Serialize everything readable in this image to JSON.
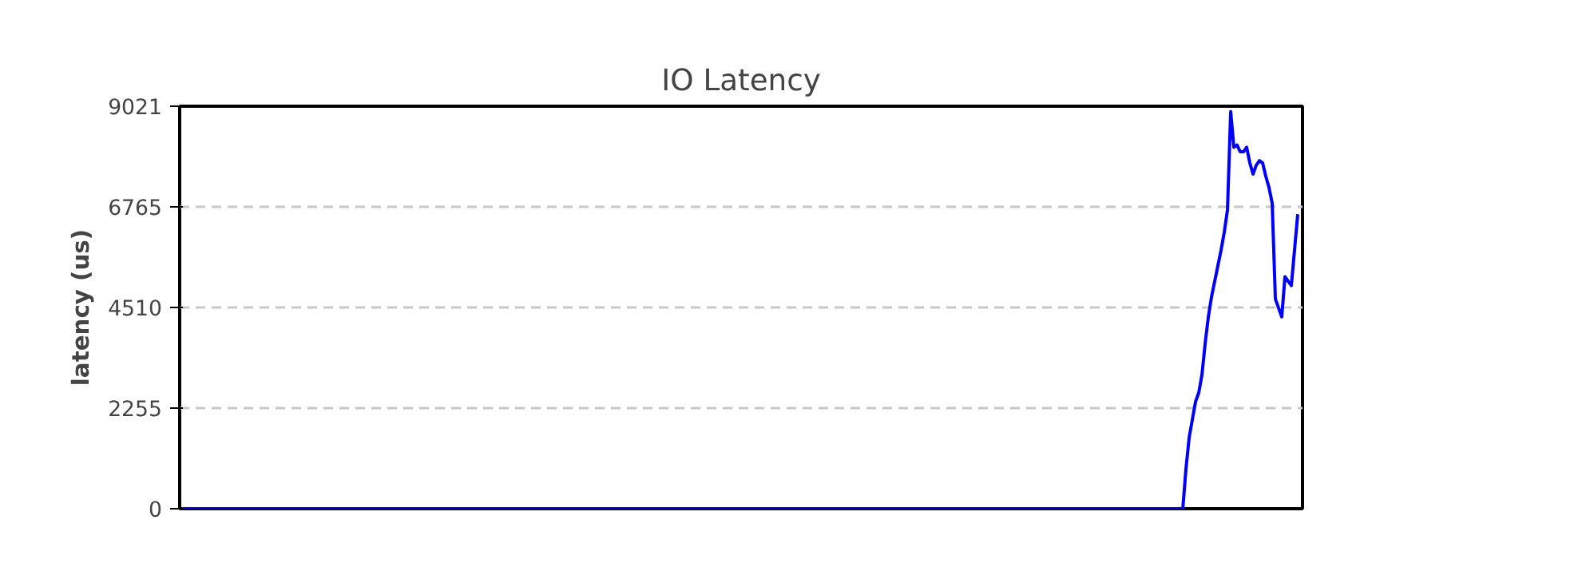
{
  "chart_data": {
    "type": "line",
    "title": "IO Latency",
    "ylabel": "latency (us)",
    "categories": [
      null,
      null,
      null,
      null,
      null,
      null,
      null,
      null,
      null,
      null,
      null,
      null,
      null,
      null,
      null,
      null,
      null,
      null,
      null,
      null,
      null,
      null,
      null,
      null,
      null,
      null,
      null,
      null,
      null,
      null,
      null,
      null,
      null,
      null,
      null,
      null,
      null,
      null,
      null,
      null,
      null,
      null,
      null,
      null,
      null,
      null,
      null,
      null,
      null,
      null,
      null,
      null,
      null,
      null,
      null,
      null,
      null,
      null,
      null,
      null,
      null,
      null,
      null,
      null,
      null,
      null,
      null,
      null,
      null,
      null,
      null,
      null,
      null,
      null,
      null,
      null,
      null,
      null,
      null,
      null,
      null,
      null,
      null,
      null,
      null,
      null,
      null,
      null,
      null,
      null,
      null,
      null,
      null,
      null,
      null,
      null,
      null,
      null,
      null,
      null,
      null,
      null,
      null,
      null,
      null,
      null,
      null,
      null,
      null,
      null,
      null,
      null,
      null,
      null,
      null,
      null,
      null,
      null,
      null,
      null,
      null,
      null,
      null,
      null,
      null,
      null,
      null,
      null,
      null,
      null,
      null,
      null,
      null,
      null,
      null,
      null,
      null,
      null,
      null,
      null,
      null,
      null,
      null,
      null,
      null,
      null,
      null,
      null,
      null,
      null,
      null,
      null,
      null,
      null,
      null,
      null,
      null,
      null,
      null,
      null,
      null,
      null,
      null,
      null,
      null,
      null,
      null,
      null,
      null,
      null,
      null,
      null,
      null,
      null,
      null,
      null,
      null,
      null,
      null,
      null,
      null,
      null,
      null,
      null,
      null,
      null,
      null,
      null,
      null,
      null,
      null,
      null,
      null,
      null,
      null,
      null,
      null,
      null,
      null,
      null,
      null,
      null,
      null,
      null,
      null,
      null,
      null,
      null,
      null,
      null,
      null,
      null,
      null,
      null,
      null,
      null,
      null,
      null,
      null,
      null,
      null,
      null,
      null,
      null,
      null,
      null,
      null,
      null,
      null,
      null,
      null,
      null,
      null,
      null,
      null,
      null,
      null,
      null,
      null,
      null,
      null,
      null,
      null,
      null,
      null,
      null,
      null,
      null,
      null,
      null,
      null,
      null,
      null,
      null,
      null,
      null,
      null,
      null,
      null,
      null,
      null,
      null,
      null,
      null,
      null,
      null,
      null,
      null,
      null,
      null,
      null,
      null,
      null,
      null,
      null,
      null,
      null,
      null,
      null,
      null,
      null,
      null,
      null,
      null,
      null,
      null,
      null,
      null,
      null,
      null,
      null,
      null,
      null,
      null,
      null,
      null,
      null,
      null,
      null,
      null,
      null,
      null,
      null,
      null,
      null,
      null,
      null,
      null,
      null,
      null,
      null,
      null,
      null,
      null,
      null,
      null,
      null,
      null,
      null,
      null,
      null,
      null,
      null,
      null,
      null,
      null,
      null,
      null,
      null,
      null,
      null,
      null,
      null,
      null,
      null,
      null,
      null,
      null,
      null,
      null,
      null,
      null,
      null,
      null,
      null,
      null,
      null,
      null,
      null,
      null,
      null
    ],
    "series": [
      {
        "color": "#0000ff",
        "values": [
          0,
          0,
          0,
          0,
          0,
          0,
          0,
          0,
          0,
          0,
          0,
          0,
          0,
          0,
          0,
          0,
          0,
          0,
          0,
          0,
          0,
          0,
          0,
          0,
          0,
          0,
          0,
          0,
          0,
          0,
          0,
          0,
          0,
          0,
          0,
          0,
          0,
          0,
          0,
          0,
          0,
          0,
          0,
          0,
          0,
          0,
          0,
          0,
          0,
          0,
          0,
          0,
          0,
          0,
          0,
          0,
          0,
          0,
          0,
          0,
          0,
          0,
          0,
          0,
          0,
          0,
          0,
          0,
          0,
          0,
          0,
          0,
          0,
          0,
          0,
          0,
          0,
          0,
          0,
          0,
          0,
          0,
          0,
          0,
          0,
          0,
          0,
          0,
          0,
          0,
          0,
          0,
          0,
          0,
          0,
          0,
          0,
          0,
          0,
          0,
          0,
          0,
          0,
          0,
          0,
          0,
          0,
          0,
          0,
          0,
          0,
          0,
          0,
          0,
          0,
          0,
          0,
          0,
          0,
          0,
          0,
          0,
          0,
          0,
          0,
          0,
          0,
          0,
          0,
          0,
          0,
          0,
          0,
          0,
          0,
          0,
          0,
          0,
          0,
          0,
          0,
          0,
          0,
          0,
          0,
          0,
          0,
          0,
          0,
          0,
          0,
          0,
          0,
          0,
          0,
          0,
          0,
          0,
          0,
          0,
          0,
          0,
          0,
          0,
          0,
          0,
          0,
          0,
          0,
          0,
          0,
          0,
          0,
          0,
          0,
          0,
          0,
          0,
          0,
          0,
          0,
          0,
          0,
          0,
          0,
          0,
          0,
          0,
          0,
          0,
          0,
          0,
          0,
          0,
          0,
          0,
          0,
          0,
          0,
          0,
          0,
          0,
          0,
          0,
          0,
          0,
          0,
          0,
          0,
          0,
          0,
          0,
          0,
          0,
          0,
          0,
          0,
          0,
          0,
          0,
          0,
          0,
          0,
          0,
          0,
          0,
          0,
          0,
          0,
          0,
          0,
          0,
          0,
          0,
          0,
          0,
          0,
          0,
          0,
          0,
          0,
          0,
          0,
          0,
          0,
          0,
          0,
          0,
          0,
          0,
          0,
          0,
          0,
          0,
          0,
          0,
          0,
          0,
          0,
          0,
          0,
          0,
          0,
          0,
          0,
          0,
          0,
          0,
          0,
          0,
          0,
          0,
          0,
          0,
          0,
          0,
          0,
          0,
          0,
          0,
          0,
          0,
          0,
          0,
          0,
          0,
          0,
          0,
          0,
          0,
          0,
          0,
          0,
          0,
          0,
          0,
          0,
          0,
          0,
          0,
          0,
          0,
          0,
          0,
          0,
          0,
          0,
          0,
          0,
          0,
          0,
          0,
          0,
          0,
          0,
          900,
          1600,
          2000,
          2400,
          2600,
          3000,
          3700,
          4300,
          4750,
          5100,
          5450,
          5800,
          6200,
          6700,
          8900,
          8100,
          8150,
          8000,
          8000,
          8100,
          7750,
          7500,
          7700,
          7800,
          7750,
          7450,
          7200,
          6850,
          4700,
          4500,
          4300,
          5200,
          5100,
          5000,
          5800,
          6600
        ]
      }
    ],
    "ylim": [
      0,
      9021
    ],
    "yticks": [
      0,
      2255,
      4510,
      6765,
      9021
    ],
    "grid": "y",
    "tick_labels": "y",
    "marker": "none",
    "line_style": "solid"
  }
}
